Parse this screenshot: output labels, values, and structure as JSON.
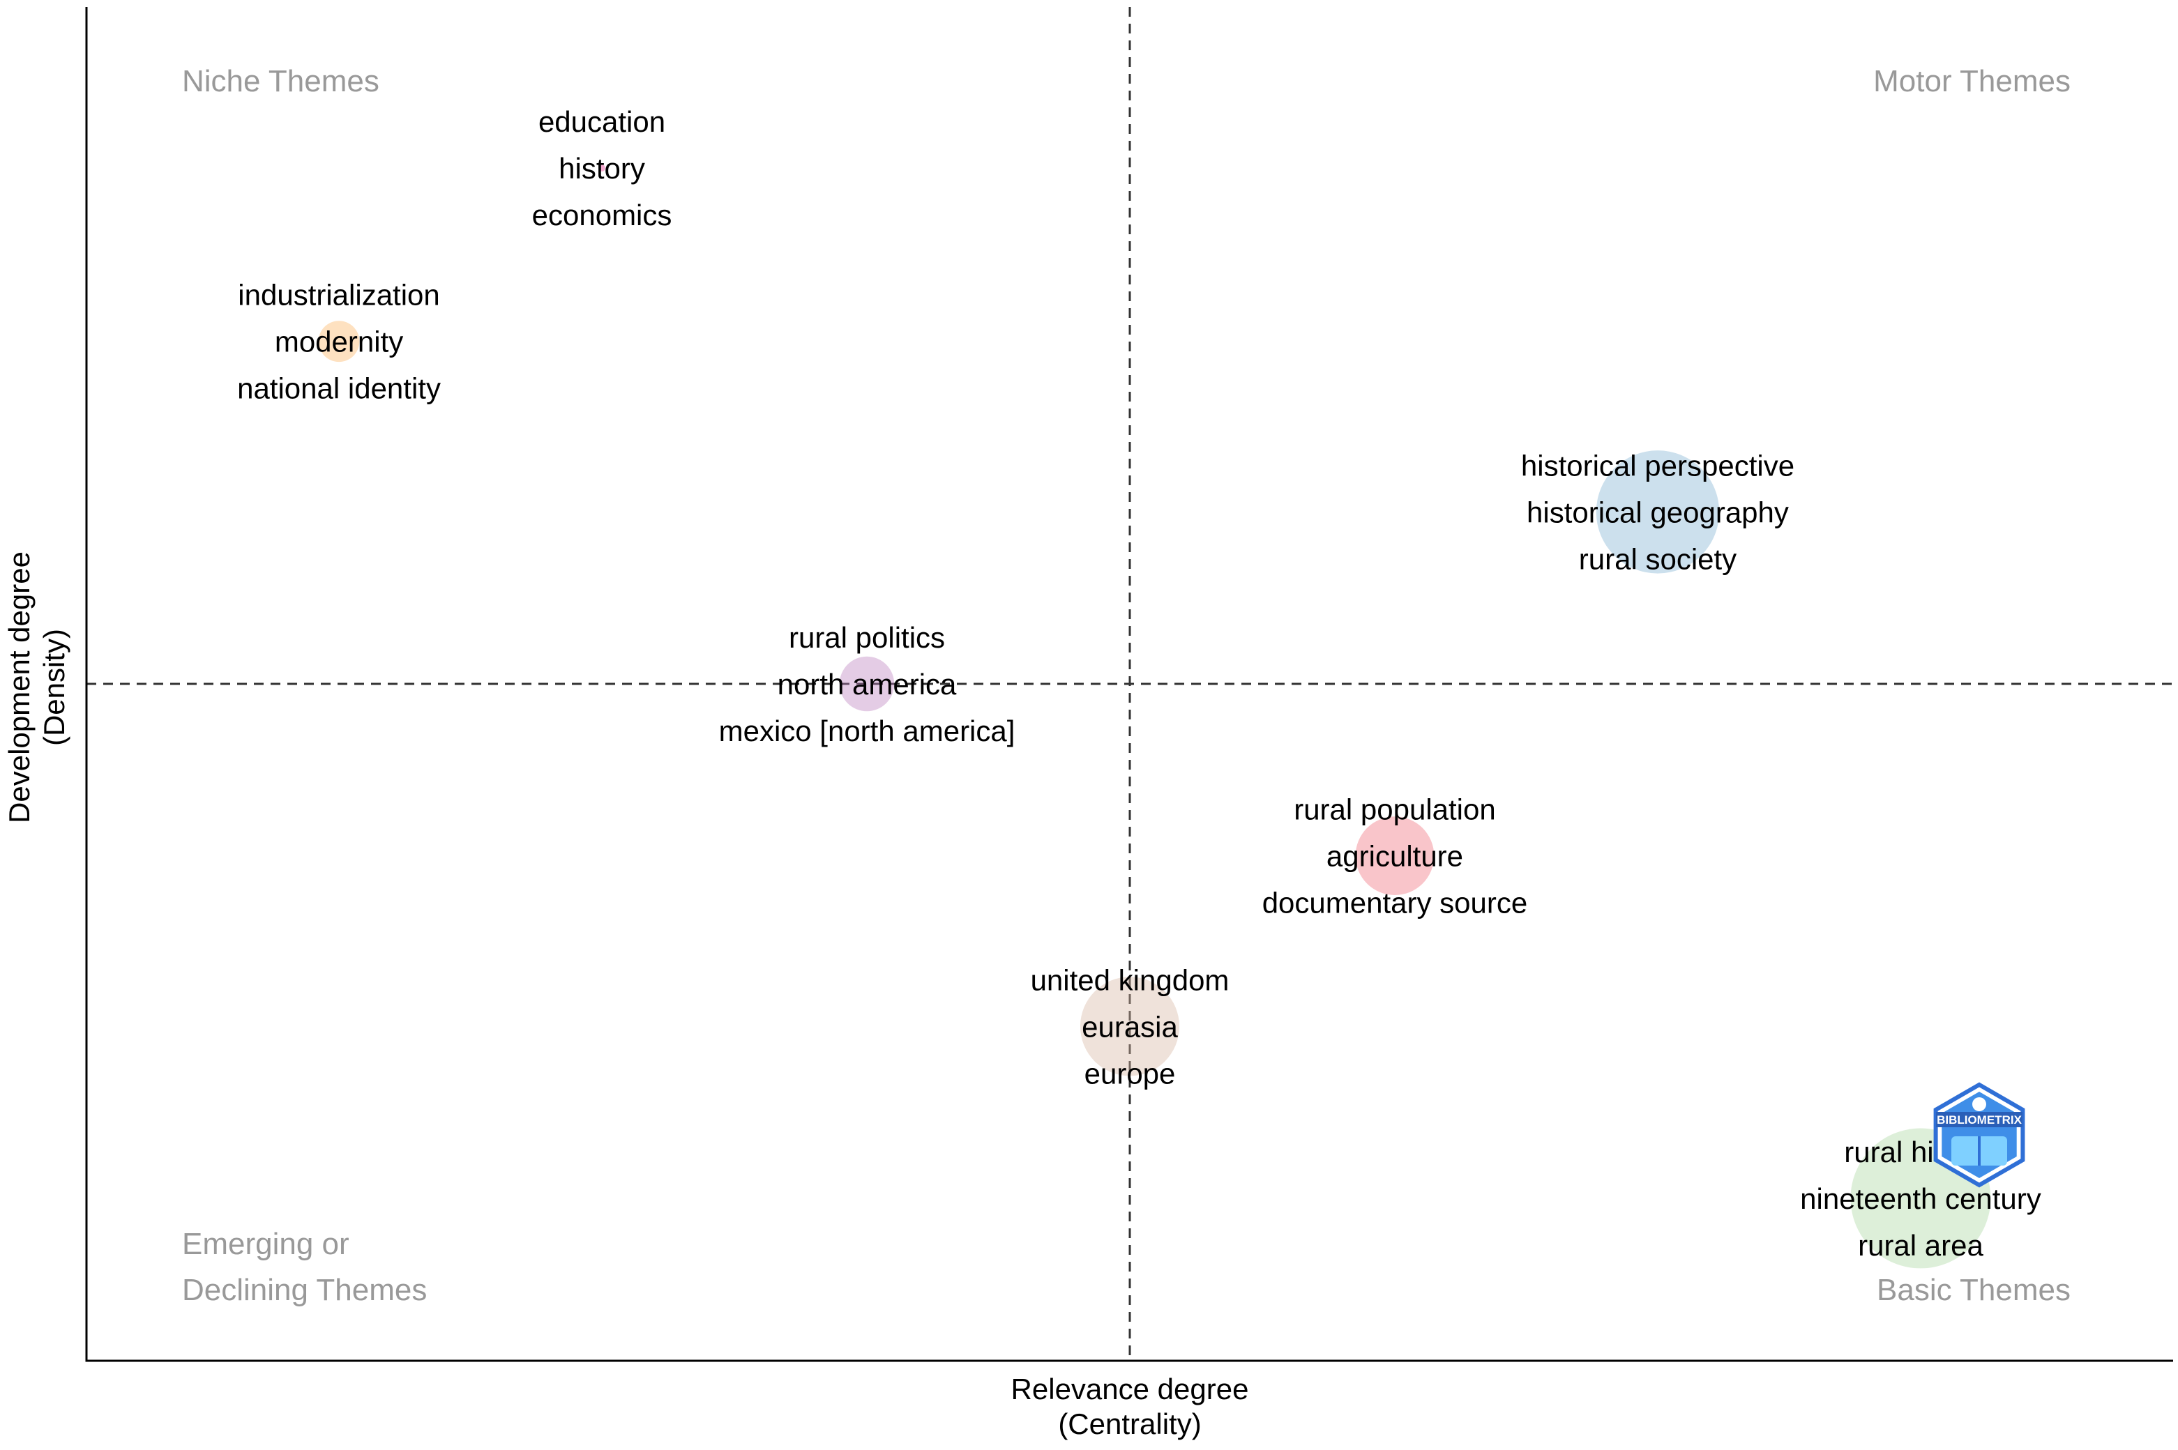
{
  "chart_data": {
    "type": "scatter",
    "title": "",
    "xlabel": [
      "Relevance degree",
      "(Centrality)"
    ],
    "ylabel": [
      "Development degree",
      "(Density)"
    ],
    "xlim": [
      0,
      1
    ],
    "ylim": [
      0,
      1
    ],
    "reference_lines": {
      "x": 0.5,
      "y": 0.5
    },
    "quadrant_labels": {
      "top_left": [
        "Niche Themes"
      ],
      "top_right": [
        "Motor Themes"
      ],
      "bottom_left": [
        "Emerging or",
        "Declining Themes"
      ],
      "bottom_right": [
        "Basic Themes"
      ]
    },
    "points": [
      {
        "name": "cluster-education",
        "x": 0.247,
        "y": 0.881,
        "size": 0.2,
        "color": "#e7298a",
        "keywords": [
          "education",
          "history",
          "economics"
        ]
      },
      {
        "name": "cluster-industrialization",
        "x": 0.121,
        "y": 0.753,
        "size": 1.2,
        "color": "#fdb462",
        "keywords": [
          "industrialization",
          "modernity",
          "national identity"
        ]
      },
      {
        "name": "cluster-historical-perspective",
        "x": 0.753,
        "y": 0.627,
        "size": 3.6,
        "color": "#80b1d3",
        "keywords": [
          "historical perspective",
          "historical geography",
          "rural society"
        ]
      },
      {
        "name": "cluster-rural-politics",
        "x": 0.374,
        "y": 0.5,
        "size": 1.6,
        "color": "#bc80bd",
        "keywords": [
          "rural politics",
          "north america",
          "mexico [north america]"
        ]
      },
      {
        "name": "cluster-rural-population",
        "x": 0.627,
        "y": 0.373,
        "size": 2.3,
        "color": "#ef6f7a",
        "keywords": [
          "rural population",
          "agriculture",
          "documentary source"
        ]
      },
      {
        "name": "cluster-united-kingdom",
        "x": 0.5,
        "y": 0.247,
        "size": 2.9,
        "color": "#d8b7a2",
        "keywords": [
          "united kingdom",
          "eurasia",
          "europe"
        ]
      },
      {
        "name": "cluster-rural-history",
        "x": 0.879,
        "y": 0.12,
        "size": 4.1,
        "color": "#a9d8a0",
        "keywords": [
          "rural history",
          "nineteenth century",
          "rural area"
        ]
      }
    ],
    "logo_text": "BIBLIOMETRIX"
  }
}
